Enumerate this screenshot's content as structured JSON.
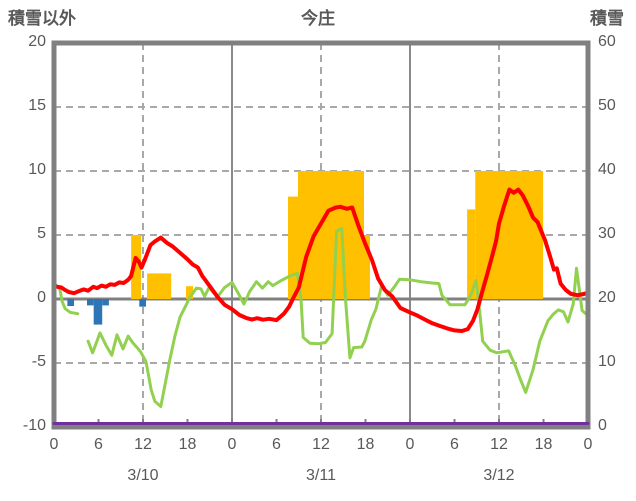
{
  "header": {
    "left_axis_title": "積雪以外",
    "station_title": "今庄",
    "right_axis_title": "積雪"
  },
  "colors": {
    "axis_gray": "#808080",
    "grid_gray": "#A8A8A8",
    "day_line_gray": "#8A8A8A",
    "text_gray": "#595959",
    "red_line": "#FF0000",
    "green_line": "#92D050",
    "orange_bar": "#FFC000",
    "blue_bar": "#2E75B6",
    "purple_line": "#7030A0"
  },
  "chart_data": {
    "type": "line",
    "title": "今庄",
    "left_axis": {
      "title": "積雪以外",
      "min": -10,
      "max": 20,
      "ticks": [
        20,
        15,
        10,
        5,
        0,
        -5,
        -10
      ]
    },
    "right_axis": {
      "title": "積雪",
      "min": 0,
      "max": 60,
      "ticks": [
        60,
        50,
        40,
        30,
        20,
        10,
        0
      ]
    },
    "x_axis": {
      "hours_total": 72,
      "tick_interval_hours": 6,
      "hour_tick_labels": [
        "0",
        "6",
        "12",
        "18",
        "0",
        "6",
        "12",
        "18",
        "0",
        "6",
        "12",
        "18",
        "0"
      ],
      "day_labels": [
        "3/10",
        "3/11",
        "3/12"
      ],
      "day_label_center_hours": [
        12,
        36,
        60
      ],
      "solid_day_boundary_hours": [
        24,
        48
      ],
      "dashed_noon_hours": [
        12,
        36,
        60
      ]
    },
    "grid": {
      "dashed_horizontal_values": [
        15,
        10,
        5,
        -5
      ],
      "zero_line_value": 0
    },
    "series": [
      {
        "name": "orange-sunshine-bars",
        "type": "bar",
        "axis": "left",
        "color": "#FFC000",
        "bars": [
          [
            10.4,
            11.75,
            5
          ],
          [
            12.55,
            15.8,
            2
          ],
          [
            17.8,
            18.75,
            1
          ],
          [
            31.55,
            32.9,
            8
          ],
          [
            32.9,
            41.8,
            10
          ],
          [
            41.8,
            42.6,
            5
          ],
          [
            55.7,
            56.8,
            7
          ],
          [
            56.8,
            65.95,
            10
          ]
        ]
      },
      {
        "name": "blue-precip-bars",
        "type": "bar",
        "axis": "left",
        "color": "#2E75B6",
        "bars": [
          [
            1.8,
            2.7,
            -0.55
          ],
          [
            4.45,
            5.35,
            -0.5
          ],
          [
            5.35,
            6.5,
            -2.0
          ],
          [
            6.5,
            7.4,
            -0.5
          ],
          [
            11.5,
            12.4,
            -0.6
          ]
        ]
      },
      {
        "name": "green-line",
        "type": "line",
        "axis": "left",
        "color": "#92D050",
        "width": 3,
        "segments": [
          [
            [
              0,
              1.25
            ],
            [
              0.8,
              0.75
            ],
            [
              1.1,
              -0.2
            ],
            [
              1.5,
              -0.75
            ],
            [
              2.2,
              -1.05
            ],
            [
              3.2,
              -1.15
            ]
          ],
          [
            [
              4.6,
              -3.3
            ],
            [
              5.2,
              -4.2
            ],
            [
              6.2,
              -2.65
            ],
            [
              7.0,
              -3.6
            ],
            [
              7.8,
              -4.4
            ],
            [
              8.5,
              -2.8
            ],
            [
              9.3,
              -3.9
            ],
            [
              10.0,
              -2.9
            ],
            [
              10.6,
              -3.4
            ],
            [
              11.2,
              -3.8
            ],
            [
              11.7,
              -4.15
            ],
            [
              12.4,
              -4.9
            ],
            [
              13.1,
              -7.1
            ],
            [
              13.6,
              -8.0
            ],
            [
              14.4,
              -8.4
            ],
            [
              15.1,
              -6.3
            ],
            [
              15.6,
              -4.8
            ],
            [
              16.3,
              -2.9
            ],
            [
              17.0,
              -1.4
            ],
            [
              17.7,
              -0.6
            ],
            [
              18.3,
              0.1
            ],
            [
              19.2,
              0.85
            ],
            [
              19.8,
              0.8
            ],
            [
              20.3,
              0.2
            ],
            [
              20.9,
              0.9
            ],
            [
              21.5,
              0.5
            ],
            [
              22.1,
              0.2
            ],
            [
              23.0,
              0.9
            ],
            [
              24.0,
              1.3
            ],
            [
              24.8,
              0.5
            ],
            [
              25.6,
              -0.4
            ],
            [
              26.4,
              0.6
            ],
            [
              27.3,
              1.35
            ],
            [
              28.1,
              0.85
            ],
            [
              28.9,
              1.35
            ],
            [
              29.5,
              1.05
            ],
            [
              30.5,
              1.4
            ],
            [
              31.8,
              1.8
            ],
            [
              32.8,
              2.0
            ],
            [
              33.3,
              0.0
            ],
            [
              33.6,
              -3.0
            ],
            [
              34.5,
              -3.45
            ],
            [
              35.6,
              -3.5
            ],
            [
              36.6,
              -3.4
            ],
            [
              37.5,
              -2.7
            ],
            [
              38.1,
              5.3
            ],
            [
              38.8,
              5.5
            ],
            [
              39.3,
              0.0
            ],
            [
              39.9,
              -4.6
            ],
            [
              40.4,
              -3.8
            ],
            [
              41.5,
              -3.75
            ],
            [
              41.9,
              -3.3
            ],
            [
              42.8,
              -1.6
            ],
            [
              43.4,
              -0.8
            ],
            [
              44.2,
              1.1
            ],
            [
              45.0,
              0.3
            ],
            [
              45.9,
              0.95
            ],
            [
              46.6,
              1.55
            ],
            [
              48.0,
              1.5
            ],
            [
              49.5,
              1.35
            ],
            [
              51.0,
              1.25
            ],
            [
              51.9,
              1.2
            ],
            [
              52.3,
              0.3
            ],
            [
              52.9,
              -0.1
            ],
            [
              53.4,
              -0.45
            ],
            [
              55.4,
              -0.45
            ],
            [
              56.2,
              0.3
            ],
            [
              56.9,
              1.45
            ],
            [
              57.4,
              -1.0
            ],
            [
              57.8,
              -3.3
            ],
            [
              58.8,
              -4.0
            ],
            [
              59.7,
              -4.2
            ],
            [
              61.3,
              -4.05
            ],
            [
              62.2,
              -5.2
            ],
            [
              62.9,
              -6.3
            ],
            [
              63.6,
              -7.3
            ],
            [
              64.6,
              -5.5
            ],
            [
              65.5,
              -3.3
            ],
            [
              66.6,
              -1.7
            ],
            [
              67.3,
              -1.2
            ],
            [
              68.0,
              -0.85
            ],
            [
              68.7,
              -1.0
            ],
            [
              69.3,
              -1.8
            ],
            [
              70.0,
              -0.4
            ],
            [
              70.45,
              2.4
            ],
            [
              71.2,
              -0.9
            ],
            [
              71.7,
              -1.15
            ],
            [
              72,
              -1.0
            ]
          ]
        ]
      },
      {
        "name": "red-temperature-line",
        "type": "line",
        "axis": "left",
        "color": "#FF0000",
        "width": 4,
        "segments": [
          [
            [
              0,
              1.0
            ],
            [
              0.5,
              0.95
            ],
            [
              1,
              0.9
            ],
            [
              1.5,
              0.7
            ],
            [
              2,
              0.55
            ],
            [
              2.7,
              0.45
            ],
            [
              3.3,
              0.6
            ],
            [
              4,
              0.75
            ],
            [
              4.6,
              0.65
            ],
            [
              5.3,
              0.95
            ],
            [
              5.8,
              0.85
            ],
            [
              6.4,
              1.05
            ],
            [
              7,
              0.95
            ],
            [
              7.6,
              1.15
            ],
            [
              8.2,
              1.1
            ],
            [
              8.8,
              1.3
            ],
            [
              9.4,
              1.25
            ],
            [
              10,
              1.5
            ],
            [
              10.4,
              1.8
            ],
            [
              11,
              3.2
            ],
            [
              11.4,
              2.95
            ],
            [
              11.8,
              2.45
            ],
            [
              12.2,
              3.0
            ],
            [
              13,
              4.2
            ],
            [
              13.6,
              4.5
            ],
            [
              14.4,
              4.8
            ],
            [
              15.2,
              4.4
            ],
            [
              16,
              4.1
            ],
            [
              17,
              3.6
            ],
            [
              18,
              3.1
            ],
            [
              18.7,
              2.7
            ],
            [
              19.4,
              2.45
            ],
            [
              20,
              1.8
            ],
            [
              21,
              1.0
            ],
            [
              22,
              0.2
            ],
            [
              23,
              -0.45
            ],
            [
              24,
              -0.8
            ],
            [
              25,
              -1.25
            ],
            [
              26,
              -1.5
            ],
            [
              26.7,
              -1.6
            ],
            [
              27.4,
              -1.5
            ],
            [
              28.2,
              -1.62
            ],
            [
              29,
              -1.55
            ],
            [
              30,
              -1.65
            ],
            [
              31,
              -1.15
            ],
            [
              31.7,
              -0.6
            ],
            [
              32.2,
              0.0
            ],
            [
              33,
              0.9
            ],
            [
              34,
              3.3
            ],
            [
              35,
              4.9
            ],
            [
              36,
              5.9
            ],
            [
              37,
              6.9
            ],
            [
              38,
              7.15
            ],
            [
              38.6,
              7.2
            ],
            [
              39.5,
              7.05
            ],
            [
              40.2,
              7.15
            ],
            [
              41,
              5.8
            ],
            [
              41.9,
              4.4
            ],
            [
              42.9,
              3.0
            ],
            [
              43.7,
              1.6
            ],
            [
              44.6,
              0.7
            ],
            [
              45.6,
              0.2
            ],
            [
              46.7,
              -0.7
            ],
            [
              48,
              -1.05
            ],
            [
              49,
              -1.3
            ],
            [
              50,
              -1.6
            ],
            [
              51,
              -1.9
            ],
            [
              52,
              -2.1
            ],
            [
              53,
              -2.3
            ],
            [
              54,
              -2.45
            ],
            [
              55,
              -2.5
            ],
            [
              55.8,
              -2.35
            ],
            [
              56.5,
              -1.7
            ],
            [
              57.1,
              -0.8
            ],
            [
              57.8,
              0.7
            ],
            [
              58.4,
              1.9
            ],
            [
              59,
              3.2
            ],
            [
              59.6,
              4.5
            ],
            [
              60,
              5.9
            ],
            [
              60.7,
              7.3
            ],
            [
              61.4,
              8.55
            ],
            [
              62,
              8.3
            ],
            [
              62.6,
              8.55
            ],
            [
              63.2,
              8.1
            ],
            [
              63.9,
              7.3
            ],
            [
              64.6,
              6.35
            ],
            [
              65.2,
              6.0
            ],
            [
              66.2,
              4.6
            ],
            [
              66.9,
              3.3
            ],
            [
              67.4,
              2.3
            ],
            [
              67.8,
              2.4
            ],
            [
              68.3,
              1.2
            ],
            [
              69,
              0.7
            ],
            [
              69.7,
              0.4
            ],
            [
              70.6,
              0.3
            ],
            [
              71.5,
              0.4
            ],
            [
              72,
              0.5
            ]
          ]
        ]
      },
      {
        "name": "purple-snow-depth-line",
        "type": "line",
        "axis": "right",
        "color": "#7030A0",
        "width": 3,
        "segments": [
          [
            [
              0,
              0
            ],
            [
              72,
              0
            ]
          ]
        ]
      }
    ]
  }
}
